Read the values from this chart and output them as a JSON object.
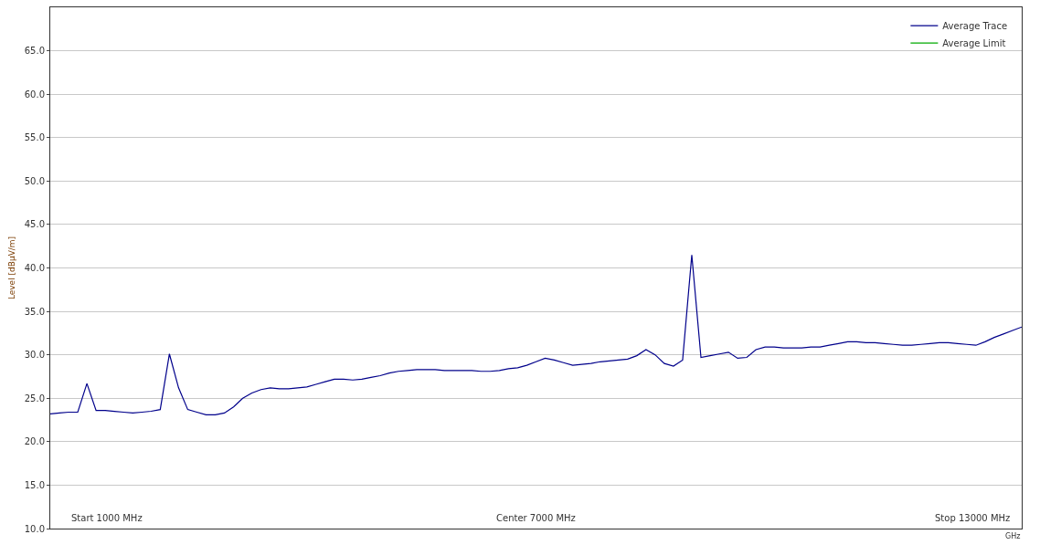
{
  "chart_data": {
    "type": "line",
    "ylabel": "Level [dBµV/m]",
    "xlabel": "GHz",
    "grid": "y",
    "legend": "top right",
    "marker": "none",
    "line_style": "solid",
    "categories": [
      null,
      null,
      null,
      null,
      null,
      null,
      null,
      null,
      null,
      null,
      null,
      null,
      null,
      null,
      null,
      null,
      null,
      null,
      null,
      null,
      null,
      null,
      null,
      null,
      null,
      null,
      null,
      null,
      null,
      null,
      null,
      null,
      null,
      null,
      null,
      null,
      null,
      null,
      null,
      null,
      null,
      null,
      null,
      null,
      null,
      null,
      null,
      null,
      null,
      null,
      null,
      null,
      null,
      null,
      null,
      null,
      null,
      null,
      null,
      null,
      null,
      null,
      null,
      null,
      null,
      null,
      null,
      null,
      null,
      null,
      null,
      null,
      null,
      null,
      null,
      null,
      null,
      null,
      null,
      null,
      null,
      null,
      null,
      null,
      null,
      null,
      null,
      null,
      null,
      null,
      null,
      null,
      null,
      null,
      null,
      null,
      null,
      null,
      null,
      null,
      null,
      null,
      null,
      null,
      null,
      null,
      null
    ],
    "ylim": [
      10,
      70
    ],
    "yticks": [
      {
        "value": 10,
        "label": "10.0"
      },
      {
        "value": 15,
        "label": "15.0"
      },
      {
        "value": 20,
        "label": "20.0"
      },
      {
        "value": 25,
        "label": "25.0"
      },
      {
        "value": 30,
        "label": "30.0"
      },
      {
        "value": 35,
        "label": "35.0"
      },
      {
        "value": 40,
        "label": "40.0"
      },
      {
        "value": 45,
        "label": "45.0"
      },
      {
        "value": 50,
        "label": "50.0"
      },
      {
        "value": 55,
        "label": "55.0"
      },
      {
        "value": 60,
        "label": "60.0"
      },
      {
        "value": 65,
        "label": "65.0"
      }
    ],
    "annotations": [
      "Start 1000 MHz",
      "Center 7000 MHz",
      "Stop 13000 MHz"
    ],
    "series": [
      {
        "name": "Average Trace",
        "color": "#00008b",
        "values": [
          23.2,
          23.3,
          23.4,
          23.4,
          26.7,
          23.6,
          23.6,
          23.5,
          23.4,
          23.3,
          23.4,
          23.5,
          23.7,
          30.1,
          26.2,
          23.7,
          23.4,
          23.1,
          23.1,
          23.3,
          24.0,
          25.0,
          25.6,
          26.0,
          26.2,
          26.1,
          26.1,
          26.2,
          26.3,
          26.6,
          26.9,
          27.2,
          27.2,
          27.1,
          27.2,
          27.4,
          27.6,
          27.9,
          28.1,
          28.2,
          28.3,
          28.3,
          28.3,
          28.2,
          28.2,
          28.2,
          28.2,
          28.1,
          28.1,
          28.2,
          28.4,
          28.5,
          28.8,
          29.2,
          29.6,
          29.4,
          29.1,
          28.8,
          28.9,
          29.0,
          29.2,
          29.3,
          29.4,
          29.5,
          29.9,
          30.6,
          30.0,
          29.0,
          28.7,
          29.4,
          41.5,
          29.7,
          29.9,
          30.1,
          30.3,
          29.6,
          29.7,
          30.6,
          30.9,
          30.9,
          30.8,
          30.8,
          30.8,
          30.9,
          30.9,
          31.1,
          31.3,
          31.5,
          31.5,
          31.4,
          31.4,
          31.3,
          31.2,
          31.1,
          31.1,
          31.2,
          31.3,
          31.4,
          31.4,
          31.3,
          31.2,
          31.1,
          31.5,
          32.0,
          32.4,
          32.8,
          33.2
        ]
      },
      {
        "name": "Average Limit",
        "color": "#00aa00",
        "values": [
          null,
          null,
          null,
          null,
          null,
          null,
          null,
          null,
          null,
          null,
          null,
          null,
          null,
          null,
          null,
          null,
          null,
          null,
          null,
          null,
          null,
          null,
          null,
          null,
          null,
          null,
          null,
          null,
          null,
          null,
          null,
          null,
          null,
          null,
          null,
          null,
          null,
          null,
          null,
          null,
          null,
          null,
          null,
          null,
          null,
          null,
          null,
          null,
          null,
          null,
          null,
          null,
          null,
          null,
          null,
          null,
          null,
          null,
          null,
          null,
          null,
          null,
          null,
          null,
          null,
          null,
          null,
          null,
          null,
          null,
          null,
          null,
          null,
          null,
          null,
          null,
          null,
          null,
          null,
          null,
          null,
          null,
          null,
          null,
          null,
          null,
          null,
          null,
          null,
          null,
          null,
          null,
          null,
          null,
          null,
          null,
          null,
          null,
          null,
          null,
          null,
          null,
          null,
          null,
          null,
          null,
          null
        ]
      }
    ]
  }
}
